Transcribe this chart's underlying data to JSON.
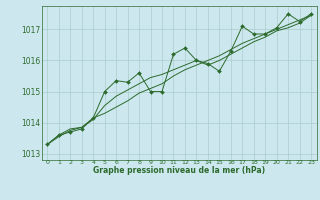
{
  "title": "Graphe pression niveau de la mer (hPa)",
  "background_color": "#cce8ee",
  "grid_color": "#aacccc",
  "line_color": "#2d6a2d",
  "xlim": [
    -0.5,
    23.5
  ],
  "ylim": [
    1012.8,
    1017.75
  ],
  "yticks": [
    1013,
    1014,
    1015,
    1016,
    1017
  ],
  "xticks": [
    0,
    1,
    2,
    3,
    4,
    5,
    6,
    7,
    8,
    9,
    10,
    11,
    12,
    13,
    14,
    15,
    16,
    17,
    18,
    19,
    20,
    21,
    22,
    23
  ],
  "series": [
    [
      1013.3,
      1013.6,
      1013.7,
      1013.8,
      1014.15,
      1015.0,
      1015.35,
      1015.3,
      1015.6,
      1015.0,
      1015.0,
      1016.2,
      1016.4,
      1016.0,
      1015.9,
      1015.65,
      1016.3,
      1017.1,
      1016.85,
      1016.85,
      1017.05,
      1017.5,
      1017.25,
      1017.5
    ],
    [
      1013.3,
      1013.6,
      1013.8,
      1013.85,
      1014.15,
      1014.3,
      1014.5,
      1014.7,
      1014.95,
      1015.1,
      1015.25,
      1015.5,
      1015.7,
      1015.85,
      1016.0,
      1016.15,
      1016.35,
      1016.55,
      1016.7,
      1016.85,
      1017.0,
      1017.15,
      1017.3,
      1017.45
    ],
    [
      1013.3,
      1013.55,
      1013.75,
      1013.85,
      1014.1,
      1014.55,
      1014.85,
      1015.05,
      1015.25,
      1015.45,
      1015.55,
      1015.7,
      1015.85,
      1016.0,
      1015.85,
      1016.0,
      1016.2,
      1016.4,
      1016.6,
      1016.75,
      1016.95,
      1017.05,
      1017.2,
      1017.45
    ]
  ]
}
